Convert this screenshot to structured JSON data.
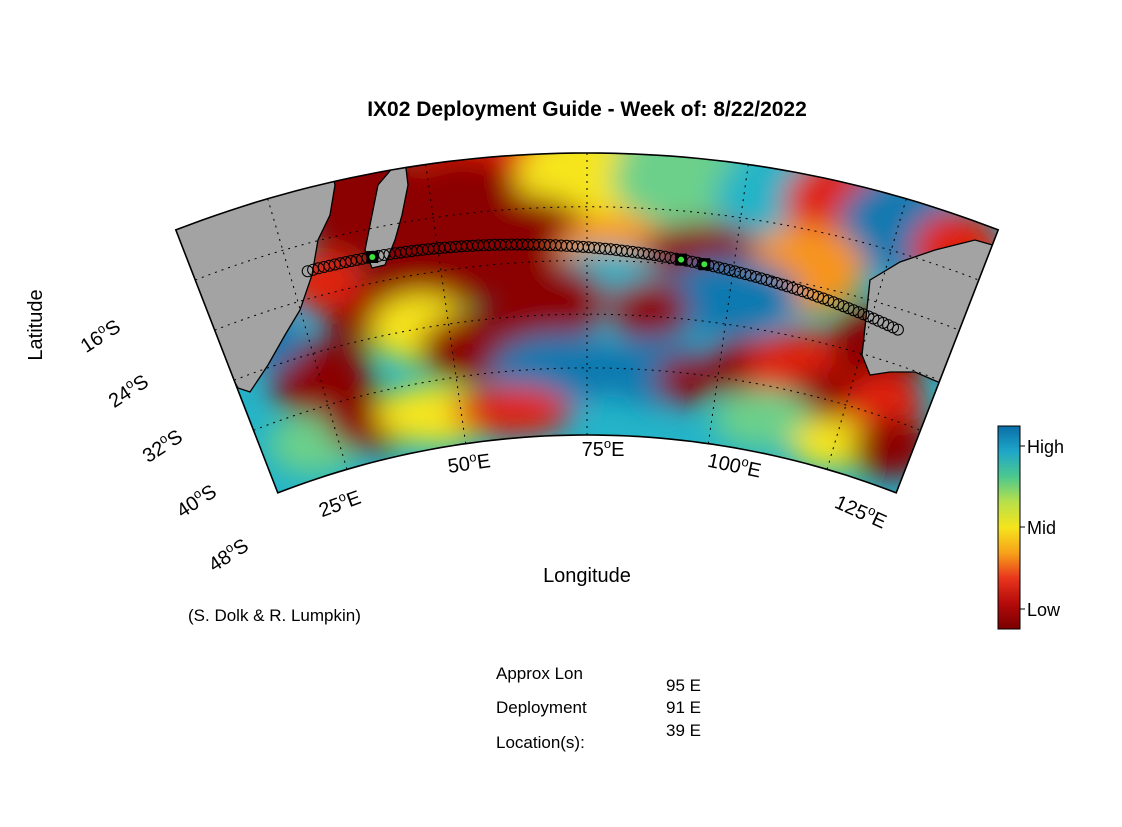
{
  "title": "IX02 Deployment Guide - Week of: 8/22/2022",
  "xlabel": "Longitude",
  "ylabel": "Latitude",
  "credit": "(S. Dolk & R. Lumpkin)",
  "colorbar": {
    "labels": [
      "High",
      "Mid",
      "Low"
    ],
    "colors": [
      "#0a6ea8",
      "#1ea6c8",
      "#4cc88e",
      "#b8e04a",
      "#f5e41c",
      "#f7a21a",
      "#e8351c",
      "#b30a0a",
      "#7a0000"
    ]
  },
  "lat_ticks": [
    {
      "deg": "16",
      "hemi": "S"
    },
    {
      "deg": "24",
      "hemi": "S"
    },
    {
      "deg": "32",
      "hemi": "S"
    },
    {
      "deg": "40",
      "hemi": "S"
    },
    {
      "deg": "48",
      "hemi": "S"
    }
  ],
  "lon_ticks": [
    {
      "deg": "25",
      "hemi": "E"
    },
    {
      "deg": "50",
      "hemi": "E"
    },
    {
      "deg": "75",
      "hemi": "E"
    },
    {
      "deg": "100",
      "hemi": "E"
    },
    {
      "deg": "125",
      "hemi": "E"
    }
  ],
  "info": {
    "label_lines": [
      "Approx Lon",
      "Deployment",
      "Location(s):"
    ],
    "values": [
      "95 E",
      "91 E",
      "39 E"
    ]
  },
  "map_colors": {
    "land": "#a3a3a3",
    "dark_red": "#8b0000",
    "red": "#e02010",
    "orange": "#f7941d",
    "yellow": "#f6e51d",
    "green": "#6cd08a",
    "cyan": "#24b4c8",
    "blue": "#0d79b0",
    "deploy_marker": "#3de03d"
  },
  "chart_data": {
    "type": "heatmap",
    "title": "IX02 Deployment Guide - Week of: 8/22/2022",
    "xlabel": "Longitude",
    "ylabel": "Latitude",
    "x_ticks": [
      "25°E",
      "50°E",
      "75°E",
      "100°E",
      "125°E"
    ],
    "y_ticks": [
      "16°S",
      "24°S",
      "32°S",
      "40°S",
      "48°S"
    ],
    "colorbar_labels": [
      "High",
      "Mid",
      "Low"
    ],
    "deployment_longitudes_E": [
      95,
      91,
      39
    ]
  }
}
